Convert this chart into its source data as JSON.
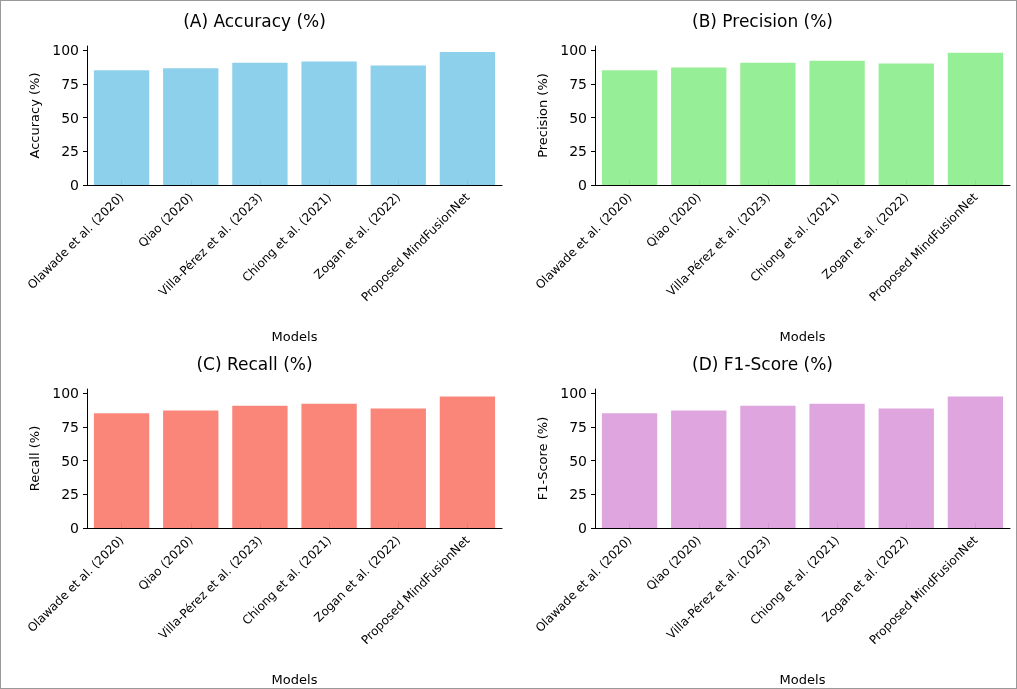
{
  "chart_data": [
    {
      "type": "bar",
      "title": "(A) Accuracy (%)",
      "xlabel": "Models",
      "ylabel": "Accuracy (%)",
      "categories": [
        "Olawade et al. (2020)",
        "Qiao (2020)",
        "Villa-Pérez et al. (2023)",
        "Chiong et al. (2021)",
        "Zogan et al. (2022)",
        "Proposed MindFusionNet"
      ],
      "values": [
        85,
        86.5,
        90.5,
        91.5,
        88.5,
        98.5
      ],
      "color": "#87ceeb",
      "ylim": [
        0,
        103
      ],
      "yticks": [
        0,
        25,
        50,
        75,
        100
      ],
      "grid": false
    },
    {
      "type": "bar",
      "title": "(B) Precision (%)",
      "xlabel": "Models",
      "ylabel": "Precision (%)",
      "categories": [
        "Olawade et al. (2020)",
        "Qiao (2020)",
        "Villa-Pérez et al. (2023)",
        "Chiong et al. (2021)",
        "Zogan et al. (2022)",
        "Proposed MindFusionNet"
      ],
      "values": [
        85,
        87,
        90.5,
        92,
        90,
        98
      ],
      "color": "#90ee90",
      "ylim": [
        0,
        103
      ],
      "yticks": [
        0,
        25,
        50,
        75,
        100
      ],
      "grid": false
    },
    {
      "type": "bar",
      "title": "(C) Recall (%)",
      "xlabel": "Models",
      "ylabel": "Recall (%)",
      "categories": [
        "Olawade et al. (2020)",
        "Qiao (2020)",
        "Villa-Pérez et al. (2023)",
        "Chiong et al. (2021)",
        "Zogan et al. (2022)",
        "Proposed MindFusionNet"
      ],
      "values": [
        85,
        87,
        90.5,
        92,
        88.5,
        97.5
      ],
      "color": "#fa8072",
      "ylim": [
        0,
        103
      ],
      "yticks": [
        0,
        25,
        50,
        75,
        100
      ],
      "grid": false
    },
    {
      "type": "bar",
      "title": "(D) F1-Score (%)",
      "xlabel": "Models",
      "ylabel": "F1-Score (%)",
      "categories": [
        "Olawade et al. (2020)",
        "Qiao (2020)",
        "Villa-Pérez et al. (2023)",
        "Chiong et al. (2021)",
        "Zogan et al. (2022)",
        "Proposed MindFusionNet"
      ],
      "values": [
        85,
        87,
        90.5,
        92,
        88.5,
        97.5
      ],
      "color": "#dda0dd",
      "ylim": [
        0,
        103
      ],
      "yticks": [
        0,
        25,
        50,
        75,
        100
      ],
      "grid": false
    }
  ]
}
